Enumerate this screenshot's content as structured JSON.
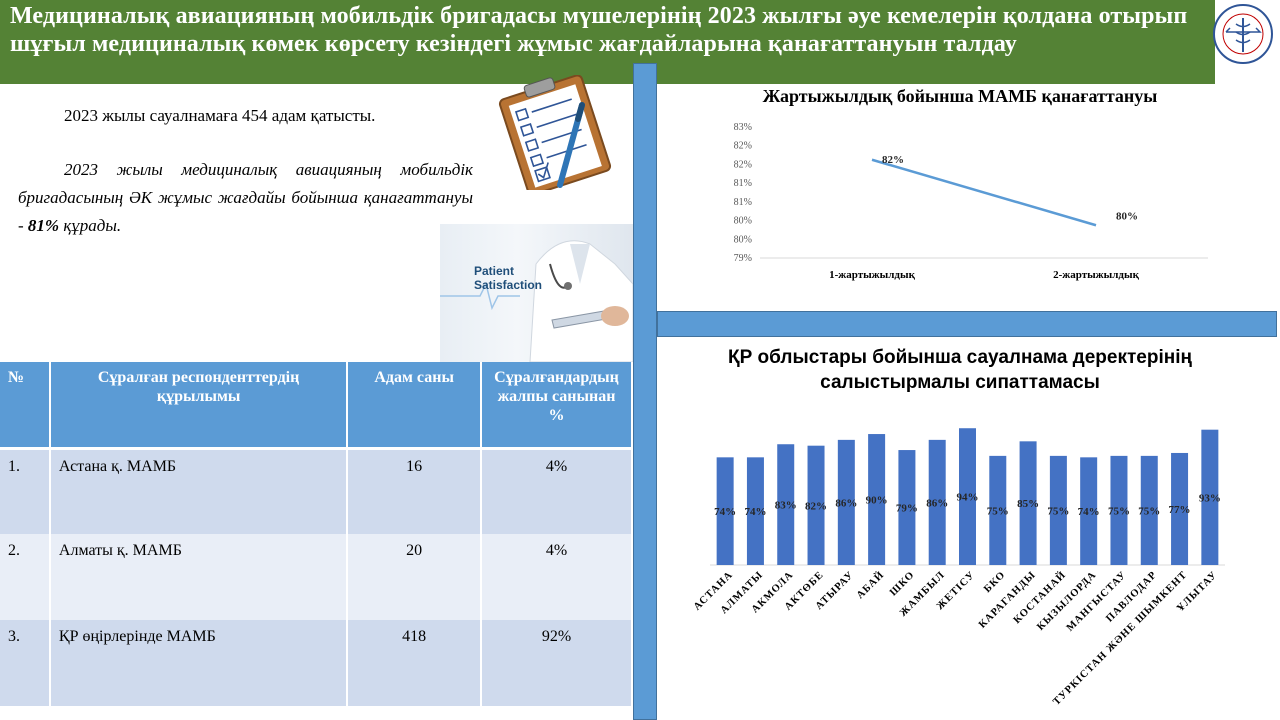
{
  "header": {
    "title": "Медициналық авиацияның мобильдік бригадасы мүшелерінің 2023 жылғы әуе кемелерін қолдана отырып шұғыл медициналық көмек көрсету кезіндегі жұмыс жағдайларына қанағаттануын талдау",
    "logo_text": "EMERGENCY MEDICAL CARE OF KAZAKHSTAN"
  },
  "intro": {
    "line1": "2023 жылы сауалнамаға 454 адам қатысты.",
    "line2_prefix": "2023 жылы медициналық авиацияның мобильдік бригадасының ӘК жұмыс жағдайы бойынша қанағаттануы - ",
    "line2_value": "81%",
    "line2_suffix": " құрады."
  },
  "image_caption": {
    "line1": "Patient",
    "line2": "Satisfaction"
  },
  "table": {
    "headers": [
      "№",
      "Сұралған респонденттердің құрылымы",
      "Адам саны",
      "Сұралғандардың жалпы санынан %"
    ],
    "rows": [
      {
        "num": "1.",
        "name": "Астана қ. МАМБ",
        "count": "16",
        "pct": "4%"
      },
      {
        "num": "2.",
        "name": "Алматы қ. МАМБ",
        "count": "20",
        "pct": "4%"
      },
      {
        "num": "3.",
        "name": "ҚР өңірлерінде МАМБ",
        "count": "418",
        "pct": "92%"
      }
    ]
  },
  "chart_data": [
    {
      "type": "line",
      "title": "Жартыжылдық бойынша МАМБ қанағаттануы",
      "categories": [
        "1-жартыжылдық",
        "2-жартыжылдық"
      ],
      "values": [
        82,
        80
      ],
      "value_labels": [
        "82%",
        "80%"
      ],
      "y_tick_labels": [
        "83%",
        "82%",
        "82%",
        "81%",
        "81%",
        "80%",
        "80%",
        "79%"
      ],
      "ylim": [
        79,
        83
      ],
      "line_color": "#5b9bd5"
    },
    {
      "type": "bar",
      "title": "ҚР облыстары бойынша сауалнама деректерінің салыстырмалы сипаттамасы",
      "categories": [
        "АСТАНА",
        "АЛМАТЫ",
        "АКМОЛА",
        "АКТӨБЕ",
        "АТЫРАУ",
        "АБАЙ",
        "ШКО",
        "ЖАМБЫЛ",
        "ЖЕТІСУ",
        "БКО",
        "КАРАГАНДЫ",
        "КОСТАНАЙ",
        "КЫЗЫЛОРДА",
        "МАНГЫСТАУ",
        "ПАВЛОДАР",
        "ТУРКІСТАН ЖӘНЕ ШЫМКЕНТ",
        "ҰЛЫТАУ"
      ],
      "values": [
        74,
        74,
        83,
        82,
        86,
        90,
        79,
        86,
        94,
        75,
        85,
        75,
        74,
        75,
        75,
        77,
        93
      ],
      "value_labels": [
        "74%",
        "74%",
        "83%",
        "82%",
        "86%",
        "90%",
        "79%",
        "86%",
        "94%",
        "75%",
        "85%",
        "75%",
        "74%",
        "75%",
        "75%",
        "77%",
        "93%"
      ],
      "bar_color": "#4472c4"
    }
  ]
}
